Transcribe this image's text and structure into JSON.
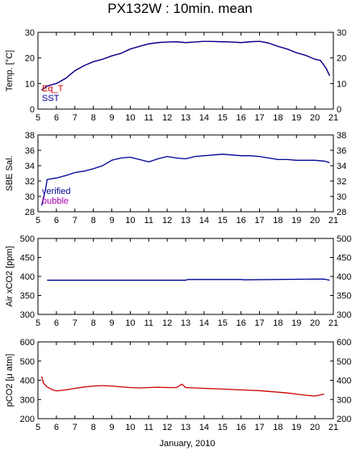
{
  "title": "PX132W : 10min. mean",
  "footer_label": "January, 2010",
  "chart_data": [
    {
      "type": "line",
      "ylabel": "Temp. [°C]",
      "ylim": [
        0,
        30
      ],
      "yticks": [
        0,
        10,
        20,
        30
      ],
      "xlim": [
        5,
        21
      ],
      "xticks": [
        5,
        6,
        7,
        8,
        9,
        10,
        11,
        12,
        13,
        14,
        15,
        16,
        17,
        18,
        19,
        20,
        21
      ],
      "legend": [
        "Eq_T",
        "SST"
      ],
      "series": [
        {
          "name": "Eq_T",
          "color": "#cc0000",
          "x": [
            5.2,
            5.5,
            6.0,
            6.5,
            7.0,
            7.5,
            8.0,
            8.5,
            9.0,
            9.5,
            10.0,
            10.5,
            11.0,
            11.5,
            12.0,
            12.5,
            13.0,
            13.5,
            14.0,
            14.5,
            15.0,
            15.5,
            16.0,
            16.5,
            17.0,
            17.5,
            18.0,
            18.5,
            19.0,
            19.5,
            20.0,
            20.3,
            20.6,
            20.8
          ],
          "values": [
            7.5,
            9.0,
            10.0,
            12.0,
            15.0,
            17.0,
            18.5,
            19.5,
            20.8,
            21.8,
            23.5,
            24.5,
            25.5,
            26.0,
            26.2,
            26.3,
            26.0,
            26.2,
            26.5,
            26.4,
            26.3,
            26.2,
            26.0,
            26.3,
            26.5,
            25.8,
            24.5,
            23.5,
            22.0,
            21.0,
            19.5,
            19.0,
            16.0,
            13.0
          ]
        },
        {
          "name": "SST",
          "color": "#000099",
          "x": [
            5.2,
            5.5,
            6.0,
            6.5,
            7.0,
            7.5,
            8.0,
            8.5,
            9.0,
            9.5,
            10.0,
            10.5,
            11.0,
            11.5,
            12.0,
            12.5,
            13.0,
            13.5,
            14.0,
            14.5,
            15.0,
            15.5,
            16.0,
            16.5,
            17.0,
            17.5,
            18.0,
            18.5,
            19.0,
            19.5,
            20.0,
            20.3,
            20.6,
            20.8
          ],
          "values": [
            7.5,
            9.0,
            10.0,
            12.0,
            15.0,
            17.0,
            18.5,
            19.5,
            20.8,
            21.8,
            23.5,
            24.5,
            25.5,
            26.0,
            26.2,
            26.3,
            26.0,
            26.2,
            26.5,
            26.4,
            26.3,
            26.2,
            26.0,
            26.3,
            26.5,
            25.8,
            24.5,
            23.5,
            22.0,
            21.0,
            19.5,
            19.0,
            16.0,
            13.0
          ]
        }
      ]
    },
    {
      "type": "line",
      "ylabel": "SBE Sal.",
      "ylim": [
        28,
        38
      ],
      "yticks": [
        28,
        30,
        32,
        34,
        36,
        38
      ],
      "xlim": [
        5,
        21
      ],
      "xticks": [
        5,
        6,
        7,
        8,
        9,
        10,
        11,
        12,
        13,
        14,
        15,
        16,
        17,
        18,
        19,
        20,
        21
      ],
      "legend": [
        "verified",
        "bubble"
      ],
      "series": [
        {
          "name": "verified",
          "color": "#000099",
          "x": [
            5.2,
            5.4,
            5.5,
            6.0,
            6.5,
            7.0,
            7.5,
            8.0,
            8.5,
            9.0,
            9.5,
            10.0,
            10.5,
            11.0,
            11.5,
            12.0,
            12.5,
            13.0,
            13.5,
            14.0,
            14.5,
            15.0,
            15.5,
            16.0,
            16.5,
            17.0,
            17.5,
            18.0,
            18.5,
            19.0,
            19.5,
            20.0,
            20.5,
            20.8
          ],
          "values": [
            28.8,
            30.8,
            32.2,
            32.4,
            32.7,
            33.1,
            33.3,
            33.6,
            34.0,
            34.7,
            35.0,
            35.1,
            34.8,
            34.5,
            34.9,
            35.2,
            35.0,
            34.9,
            35.2,
            35.3,
            35.4,
            35.5,
            35.4,
            35.3,
            35.3,
            35.2,
            35.0,
            34.8,
            34.8,
            34.7,
            34.7,
            34.7,
            34.6,
            34.4
          ]
        }
      ]
    },
    {
      "type": "line",
      "ylabel": "Air xCO2 [ppm]",
      "ylim": [
        300,
        500
      ],
      "yticks": [
        300,
        350,
        400,
        450,
        500
      ],
      "xlim": [
        5,
        21
      ],
      "xticks": [
        5,
        6,
        7,
        8,
        9,
        10,
        11,
        12,
        13,
        14,
        15,
        16,
        17,
        18,
        19,
        20,
        21
      ],
      "legend": [],
      "series": [
        {
          "color": "#000099",
          "x": [
            5.5,
            13.0,
            13.1,
            16.0,
            16.2,
            20.0,
            20.5,
            20.8
          ],
          "values": [
            390,
            390,
            392,
            392,
            391,
            393,
            393,
            390
          ]
        }
      ]
    },
    {
      "type": "line",
      "ylabel": "pCO2 [μ atm]",
      "ylim": [
        200,
        600
      ],
      "yticks": [
        200,
        300,
        400,
        500,
        600
      ],
      "xlim": [
        5,
        21
      ],
      "xticks": [
        5,
        6,
        7,
        8,
        9,
        10,
        11,
        12,
        13,
        14,
        15,
        16,
        17,
        18,
        19,
        20,
        21
      ],
      "legend": [],
      "series": [
        {
          "color": "#cc0000",
          "x": [
            5.2,
            5.3,
            5.5,
            5.8,
            6.0,
            6.5,
            7.0,
            7.5,
            8.0,
            8.5,
            9.0,
            9.5,
            10.0,
            10.5,
            11.0,
            11.5,
            12.0,
            12.5,
            12.8,
            13.0,
            13.5,
            14.0,
            14.5,
            15.0,
            15.5,
            16.0,
            16.5,
            17.0,
            17.5,
            18.0,
            18.5,
            19.0,
            19.5,
            20.0,
            20.5
          ],
          "values": [
            420,
            385,
            365,
            350,
            345,
            350,
            358,
            365,
            370,
            372,
            370,
            366,
            362,
            360,
            362,
            364,
            362,
            362,
            380,
            362,
            360,
            358,
            356,
            354,
            352,
            350,
            348,
            346,
            342,
            338,
            334,
            328,
            322,
            318,
            328
          ]
        }
      ]
    }
  ]
}
